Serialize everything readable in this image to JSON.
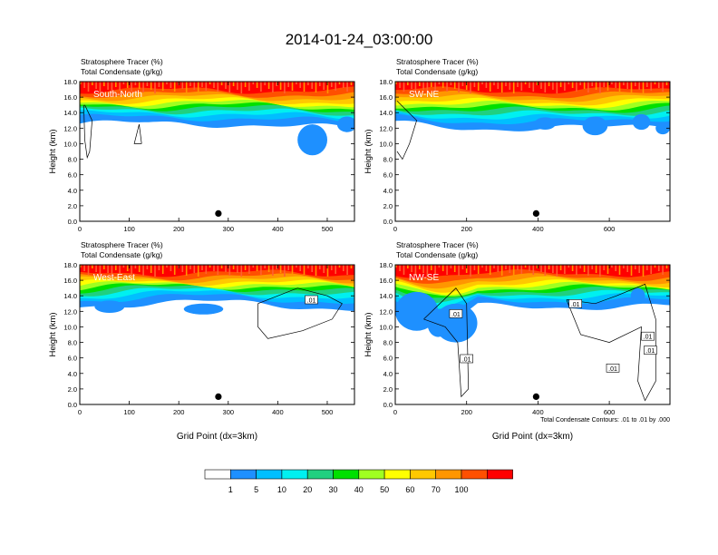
{
  "title": "2014-01-24_03:00:00",
  "colorbar": {
    "labels": [
      "1",
      "5",
      "10",
      "20",
      "30",
      "40",
      "50",
      "60",
      "70",
      "100"
    ],
    "colors": [
      "#ffffff",
      "#1e90ff",
      "#00bfff",
      "#00f0f0",
      "#20d080",
      "#00e000",
      "#a0ff20",
      "#ffff00",
      "#ffc800",
      "#ff9600",
      "#ff5000",
      "#ff0000"
    ]
  },
  "chart_data": [
    {
      "type": "heatmap",
      "panel_label": "South-North",
      "subtitle_1": "Stratosphere Tracer   (%)",
      "subtitle_2": "Total Condensate   (g/kg)",
      "ylabel": "Height (km)",
      "xlabel": "",
      "xlim": [
        0,
        555
      ],
      "ylim": [
        0,
        18
      ],
      "xticks": [
        "0",
        "100",
        "200",
        "300",
        "400",
        "500"
      ],
      "xtick_values": [
        0,
        100,
        200,
        300,
        400,
        500
      ],
      "yticks": [
        "0.0",
        "2.0",
        "4.0",
        "6.0",
        "8.0",
        "10.0",
        "12.0",
        "14.0",
        "16.0",
        "18.0"
      ],
      "marker": {
        "x": 280,
        "y": 1.0
      },
      "contour_labels": [],
      "footnote": ""
    },
    {
      "type": "heatmap",
      "panel_label": "SW-NE",
      "subtitle_1": "Stratosphere Tracer   (%)",
      "subtitle_2": "Total Condensate   (g/kg)",
      "ylabel": "Height (km)",
      "xlabel": "",
      "xlim": [
        0,
        770
      ],
      "ylim": [
        0,
        18
      ],
      "xticks": [
        "0",
        "200",
        "400",
        "600"
      ],
      "xtick_values": [
        0,
        200,
        400,
        600
      ],
      "yticks": [
        "0.0",
        "2.0",
        "4.0",
        "6.0",
        "8.0",
        "10.0",
        "12.0",
        "14.0",
        "16.0",
        "18.0"
      ],
      "marker": {
        "x": 395,
        "y": 1.0
      },
      "contour_labels": [],
      "footnote": ""
    },
    {
      "type": "heatmap",
      "panel_label": "West-East",
      "subtitle_1": "Stratosphere Tracer   (%)",
      "subtitle_2": "Total Condensate   (g/kg)",
      "ylabel": "Height (km)",
      "xlabel": "Grid Point (dx=3km)",
      "xlim": [
        0,
        555
      ],
      "ylim": [
        0,
        18
      ],
      "xticks": [
        "0",
        "100",
        "200",
        "300",
        "400",
        "500"
      ],
      "xtick_values": [
        0,
        100,
        200,
        300,
        400,
        500
      ],
      "yticks": [
        "0.0",
        "2.0",
        "4.0",
        "6.0",
        "8.0",
        "10.0",
        "12.0",
        "14.0",
        "16.0",
        "18.0"
      ],
      "marker": {
        "x": 280,
        "y": 1.0
      },
      "contour_labels": [
        {
          "text": ".01",
          "x": 468,
          "y": 13.5
        }
      ],
      "footnote": ""
    },
    {
      "type": "heatmap",
      "panel_label": "NW-SE",
      "subtitle_1": "Stratosphere Tracer   (%)",
      "subtitle_2": "Total Condensate   (g/kg)",
      "ylabel": "Height (km)",
      "xlabel": "Grid Point (dx=3km)",
      "xlim": [
        0,
        770
      ],
      "ylim": [
        0,
        18
      ],
      "xticks": [
        "0",
        "200",
        "400",
        "600"
      ],
      "xtick_values": [
        0,
        200,
        400,
        600
      ],
      "yticks": [
        "0.0",
        "2.0",
        "4.0",
        "6.0",
        "8.0",
        "10.0",
        "12.0",
        "14.0",
        "16.0",
        "18.0"
      ],
      "marker": {
        "x": 395,
        "y": 1.0
      },
      "contour_labels": [
        {
          "text": ".01",
          "x": 170,
          "y": 11.7
        },
        {
          "text": ".01",
          "x": 200,
          "y": 5.9
        },
        {
          "text": ".01",
          "x": 505,
          "y": 13.0
        },
        {
          "text": ".01",
          "x": 610,
          "y": 4.7
        },
        {
          "text": ".01",
          "x": 708,
          "y": 8.8
        },
        {
          "text": ".01",
          "x": 715,
          "y": 7.0
        }
      ],
      "footnote": "Total Condensate Contours: .01 to .01 by .000"
    }
  ]
}
